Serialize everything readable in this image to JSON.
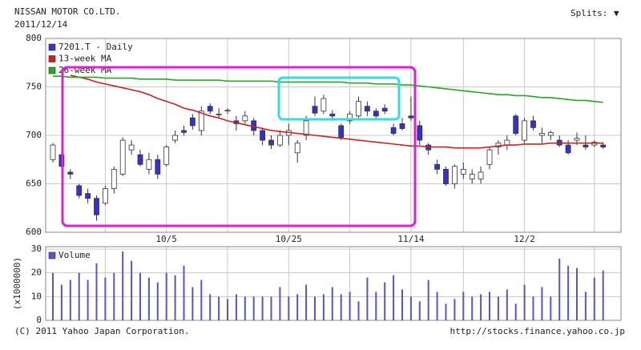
{
  "header": {
    "splits": "Splits:",
    "splits_icon": "▼"
  },
  "chart_data": [
    {
      "type": "candlestick",
      "title": "NISSAN MOTOR CO.LTD.",
      "subtitle": "2011/12/14",
      "categories": [
        null,
        null,
        null,
        null,
        null,
        null,
        null,
        null,
        null,
        null,
        null,
        null,
        null,
        "10/5",
        null,
        null,
        null,
        null,
        null,
        null,
        null,
        null,
        null,
        null,
        null,
        null,
        null,
        "10/25",
        null,
        null,
        null,
        null,
        null,
        null,
        null,
        null,
        null,
        null,
        null,
        null,
        null,
        "11/14",
        null,
        null,
        null,
        null,
        null,
        null,
        null,
        null,
        null,
        null,
        null,
        null,
        "12/2",
        null,
        null,
        null,
        null,
        null,
        null,
        null,
        null,
        null
      ],
      "series": [
        {
          "name": "7201.T - Daily",
          "color": "#3333cc",
          "up_color": "#ffffff",
          "down_color": "#3333cc",
          "open": [
            675,
            680,
            662,
            648,
            640,
            635,
            630,
            645,
            660,
            685,
            680,
            665,
            675,
            670,
            695,
            705,
            718,
            705,
            730,
            722,
            725,
            715,
            715,
            715,
            705,
            695,
            690,
            700,
            682,
            700,
            730,
            725,
            722,
            710,
            715,
            720,
            730,
            725,
            728,
            708,
            712,
            720,
            710,
            690,
            670,
            665,
            650,
            660,
            655,
            655,
            670,
            688,
            690,
            720,
            695,
            715,
            700,
            700,
            695,
            690,
            695,
            690,
            690,
            690
          ],
          "high": [
            692,
            682,
            665,
            650,
            645,
            638,
            648,
            668,
            698,
            695,
            685,
            682,
            680,
            690,
            705,
            710,
            722,
            730,
            733,
            728,
            728,
            720,
            725,
            718,
            708,
            700,
            705,
            712,
            695,
            720,
            740,
            742,
            726,
            712,
            725,
            740,
            735,
            728,
            732,
            712,
            718,
            740,
            715,
            692,
            675,
            668,
            670,
            672,
            665,
            668,
            688,
            695,
            700,
            722,
            718,
            720,
            708,
            705,
            700,
            695,
            703,
            700,
            695,
            693
          ],
          "low": [
            672,
            665,
            655,
            635,
            630,
            612,
            628,
            640,
            658,
            680,
            668,
            660,
            655,
            668,
            692,
            700,
            706,
            700,
            722,
            718,
            722,
            705,
            712,
            700,
            690,
            686,
            688,
            690,
            672,
            695,
            720,
            722,
            715,
            695,
            712,
            718,
            720,
            718,
            722,
            700,
            705,
            715,
            690,
            680,
            660,
            648,
            645,
            655,
            650,
            650,
            665,
            680,
            685,
            700,
            692,
            705,
            692,
            695,
            688,
            680,
            690,
            685,
            688,
            686
          ],
          "close": [
            690,
            668,
            660,
            638,
            635,
            618,
            645,
            665,
            695,
            690,
            670,
            675,
            660,
            688,
            700,
            703,
            710,
            725,
            725,
            722,
            726,
            712,
            720,
            705,
            695,
            690,
            700,
            705,
            692,
            715,
            723,
            738,
            720,
            698,
            722,
            735,
            725,
            720,
            725,
            702,
            707,
            718,
            695,
            685,
            665,
            650,
            668,
            665,
            660,
            662,
            685,
            692,
            695,
            702,
            715,
            708,
            702,
            703,
            690,
            682,
            697,
            688,
            693,
            688
          ]
        },
        {
          "name": "13-week MA",
          "type": "line",
          "color": "#cc2222",
          "values": [
            null,
            null,
            762,
            760,
            758,
            755,
            753,
            751,
            749,
            747,
            745,
            742,
            738,
            735,
            732,
            728,
            726,
            723,
            720,
            718,
            715,
            713,
            711,
            709,
            707,
            705,
            704,
            703,
            702,
            701,
            700,
            699,
            698,
            697,
            696,
            695,
            694,
            693,
            692,
            691,
            690,
            689,
            689,
            688,
            688,
            688,
            687,
            687,
            687,
            687,
            688,
            689,
            690,
            690,
            691,
            691,
            691,
            692,
            692,
            692,
            692,
            692,
            692,
            692
          ]
        },
        {
          "name": "26-week MA",
          "type": "line",
          "color": "#22aa22",
          "values": [
            761,
            761,
            760,
            760,
            760,
            760,
            759,
            759,
            759,
            759,
            758,
            758,
            758,
            758,
            757,
            757,
            757,
            757,
            757,
            757,
            756,
            756,
            756,
            756,
            756,
            756,
            755,
            755,
            755,
            755,
            755,
            755,
            755,
            755,
            754,
            754,
            754,
            753,
            753,
            753,
            752,
            752,
            751,
            750,
            749,
            748,
            747,
            746,
            745,
            744,
            743,
            742,
            742,
            741,
            741,
            740,
            739,
            739,
            738,
            737,
            736,
            736,
            735,
            734
          ]
        }
      ],
      "ylim": [
        600,
        800
      ],
      "yticks": [
        600,
        650,
        700,
        750,
        800
      ],
      "grid": true
    },
    {
      "type": "bar",
      "ylabel": "(x1000000)",
      "series": [
        {
          "name": "Volume",
          "color": "#5555cc",
          "values": [
            20,
            15,
            17,
            20,
            17,
            24,
            18,
            20,
            29,
            25,
            20,
            18,
            16,
            20,
            19,
            23,
            14,
            17,
            11,
            10,
            9,
            11,
            10,
            10,
            10,
            10,
            14,
            10,
            11,
            15,
            10,
            11,
            14,
            11,
            12,
            8,
            18,
            12,
            16,
            19,
            13,
            10,
            8,
            17,
            12,
            7,
            9,
            12,
            10,
            11,
            12,
            10,
            13,
            7,
            15,
            10,
            14,
            10,
            26,
            23,
            22,
            12,
            18,
            21
          ]
        }
      ],
      "ylim": [
        0,
        31
      ],
      "yticks": [
        0,
        10,
        20,
        30
      ],
      "grid": true
    }
  ],
  "footer": {
    "copyright": "(C) 2011 Yahoo Japan Corporation.",
    "url": "http://stocks.finance.yahoo.co.jp"
  }
}
